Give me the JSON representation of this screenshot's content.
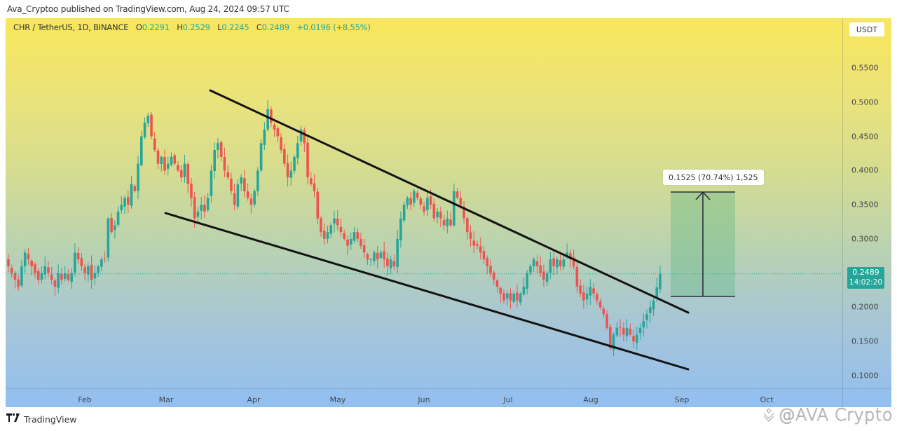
{
  "publisher_line": "Ava_Cryptoo published on TradingView.com, Aug 24, 2024 09:57 UTC",
  "legend": {
    "symbol": "CHR / TetherUS, 1D, BINANCE",
    "open_label": "O",
    "open": "0.2291",
    "high_label": "H",
    "high": "0.2529",
    "low_label": "L",
    "low": "0.2245",
    "close_label": "C",
    "close": "0.2489",
    "change": "+0.0196 (+8.55%)"
  },
  "price_scale": {
    "currency": "USDT",
    "ticks": [
      "0.5500",
      "0.5000",
      "0.4500",
      "0.4000",
      "0.3500",
      "0.3000",
      "0.2000",
      "0.1500",
      "0.1000"
    ],
    "last_price": "0.2489",
    "countdown": "14:02:20"
  },
  "time_scale": {
    "ticks": [
      "Feb",
      "Mar",
      "Apr",
      "May",
      "Jun",
      "Jul",
      "Aug",
      "Sep",
      "Oct"
    ]
  },
  "measure_tool": {
    "label": "0.1525 (70.74%) 1,525"
  },
  "footer": {
    "brand": "TradingView",
    "brand_mark": "17",
    "watermark": "@AVA Crypto"
  },
  "colors": {
    "up": "#26a69a",
    "down": "#ef5350",
    "trendline": "#131313",
    "bg_top": "#f8e75a",
    "bg_bottom": "#92bff2"
  },
  "chart_data": {
    "type": "candlestick",
    "title": "CHR / TetherUS, 1D, BINANCE",
    "xlabel": "",
    "ylabel": "USDT",
    "ylim": [
      0.08,
      0.58
    ],
    "grid": false,
    "x_ticks": [
      "Feb",
      "Mar",
      "Apr",
      "May",
      "Jun",
      "Jul",
      "Aug",
      "Sep",
      "Oct"
    ],
    "y_ticks": [
      0.1,
      0.15,
      0.2,
      0.25,
      0.3,
      0.35,
      0.4,
      0.45,
      0.5,
      0.55
    ],
    "ohlc_last": {
      "open": 0.2291,
      "high": 0.2529,
      "low": 0.2245,
      "close": 0.2489,
      "change": 0.0196,
      "change_pct": 8.55
    },
    "price_path_close": [
      0.26,
      0.25,
      0.24,
      0.23,
      0.26,
      0.28,
      0.27,
      0.26,
      0.25,
      0.24,
      0.25,
      0.26,
      0.25,
      0.24,
      0.23,
      0.25,
      0.24,
      0.25,
      0.24,
      0.25,
      0.28,
      0.27,
      0.26,
      0.25,
      0.26,
      0.24,
      0.25,
      0.26,
      0.27,
      0.27,
      0.33,
      0.31,
      0.32,
      0.34,
      0.35,
      0.36,
      0.35,
      0.38,
      0.37,
      0.41,
      0.45,
      0.47,
      0.48,
      0.45,
      0.43,
      0.41,
      0.42,
      0.4,
      0.41,
      0.42,
      0.41,
      0.4,
      0.39,
      0.41,
      0.38,
      0.36,
      0.33,
      0.34,
      0.35,
      0.34,
      0.36,
      0.4,
      0.43,
      0.44,
      0.42,
      0.4,
      0.39,
      0.37,
      0.35,
      0.38,
      0.39,
      0.37,
      0.36,
      0.35,
      0.37,
      0.4,
      0.44,
      0.46,
      0.49,
      0.47,
      0.46,
      0.45,
      0.43,
      0.41,
      0.39,
      0.4,
      0.42,
      0.44,
      0.46,
      0.44,
      0.39,
      0.38,
      0.37,
      0.33,
      0.31,
      0.3,
      0.31,
      0.32,
      0.33,
      0.32,
      0.31,
      0.3,
      0.29,
      0.3,
      0.31,
      0.3,
      0.29,
      0.28,
      0.27,
      0.27,
      0.28,
      0.27,
      0.28,
      0.27,
      0.26,
      0.27,
      0.26,
      0.3,
      0.33,
      0.35,
      0.36,
      0.35,
      0.37,
      0.36,
      0.35,
      0.34,
      0.36,
      0.35,
      0.33,
      0.34,
      0.33,
      0.32,
      0.33,
      0.32,
      0.37,
      0.36,
      0.35,
      0.33,
      0.31,
      0.3,
      0.29,
      0.29,
      0.28,
      0.27,
      0.26,
      0.25,
      0.24,
      0.23,
      0.22,
      0.21,
      0.22,
      0.21,
      0.22,
      0.21,
      0.22,
      0.23,
      0.25,
      0.26,
      0.27,
      0.26,
      0.25,
      0.24,
      0.25,
      0.27,
      0.26,
      0.27,
      0.26,
      0.27,
      0.28,
      0.27,
      0.26,
      0.23,
      0.22,
      0.21,
      0.22,
      0.23,
      0.22,
      0.21,
      0.2,
      0.19,
      0.17,
      0.14,
      0.16,
      0.17,
      0.17,
      0.16,
      0.17,
      0.16,
      0.15,
      0.16,
      0.17,
      0.18,
      0.19,
      0.2,
      0.21,
      0.2291,
      0.2489
    ],
    "annotations": [
      {
        "type": "trendline",
        "name": "falling-wedge-upper",
        "from": {
          "month": "Mar",
          "price": 0.51
        },
        "to": {
          "month": "Sep",
          "price": 0.19
        }
      },
      {
        "type": "trendline",
        "name": "falling-wedge-lower",
        "from": {
          "month": "Mar",
          "price": 0.34
        },
        "to": {
          "month": "Sep",
          "price": 0.11
        }
      },
      {
        "type": "price_range",
        "label": "0.1525 (70.74%) 1,525",
        "from_price": 0.2155,
        "to_price": 0.368
      }
    ]
  }
}
